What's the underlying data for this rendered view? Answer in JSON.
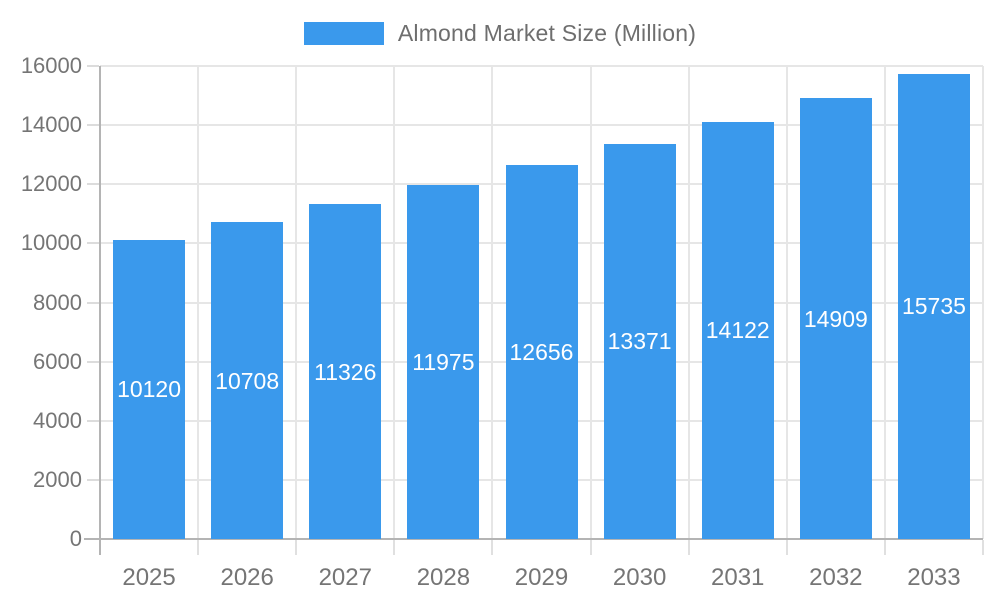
{
  "legend": {
    "label": "Almond Market Size (Million)",
    "swatch_color": "#3a99ec"
  },
  "chart_data": {
    "type": "bar",
    "title": "Almond Market Size (Million)",
    "categories": [
      "2025",
      "2026",
      "2027",
      "2028",
      "2029",
      "2030",
      "2031",
      "2032",
      "2033"
    ],
    "values": [
      10120,
      10708,
      11326,
      11975,
      12656,
      13371,
      14122,
      14909,
      15735
    ],
    "xlabel": "",
    "ylabel": "",
    "ylim": [
      0,
      16000
    ],
    "ytick_step": 2000,
    "ytick_labels": [
      "0",
      "2000",
      "4000",
      "6000",
      "8000",
      "10000",
      "12000",
      "14000",
      "16000"
    ],
    "grid": true,
    "legend_position": "top-center",
    "bar_color": "#3a99ec",
    "value_label_color": "#ffffff",
    "axis_label_color": "#757575",
    "gridline_color": "#e6e6e6",
    "axis_line_color": "#b4b4b4",
    "background_color": "#ffffff"
  }
}
